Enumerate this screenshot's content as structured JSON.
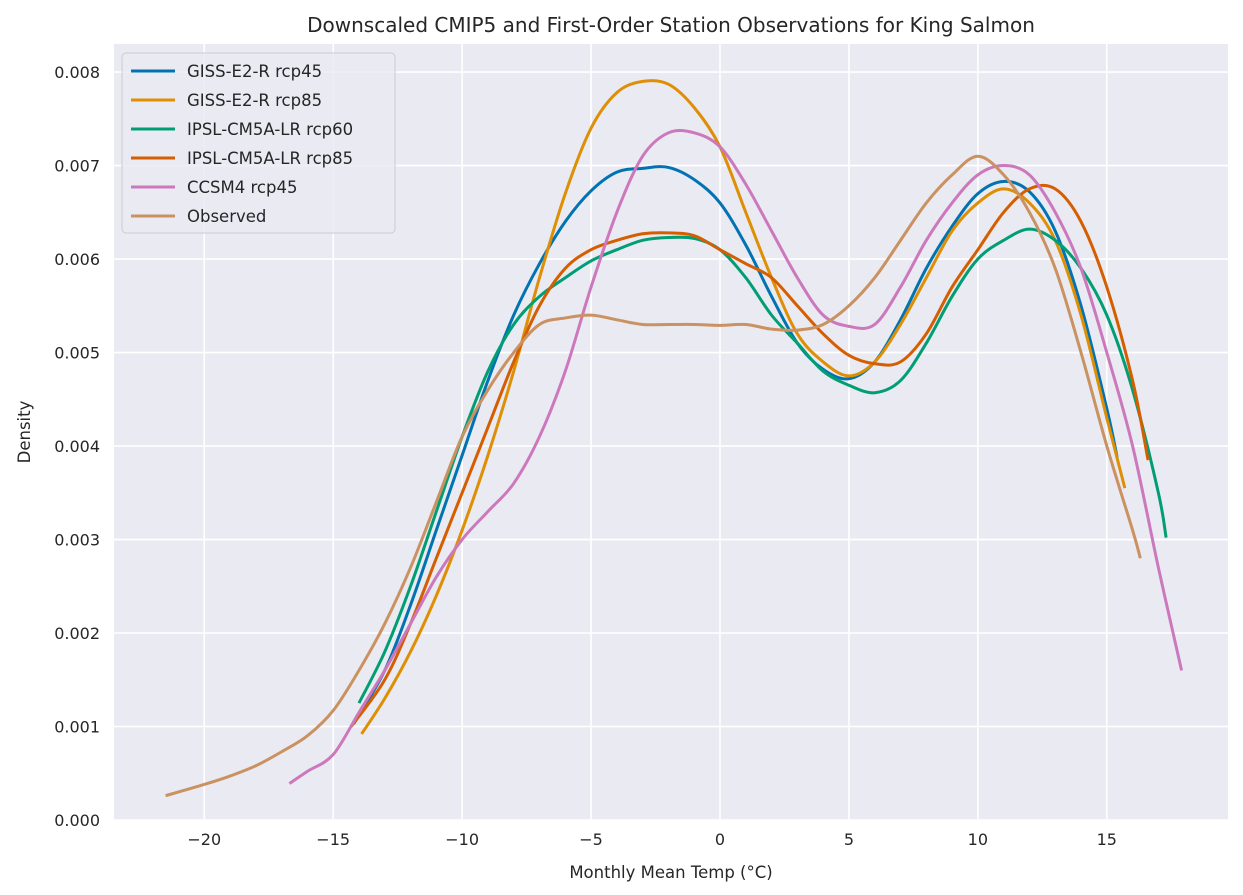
{
  "chart_data": {
    "type": "line",
    "title": "Downscaled CMIP5 and First-Order Station Observations for King Salmon",
    "xlabel": "Monthly Mean Temp (°C)",
    "ylabel": "Density",
    "xlim": [
      -23.5,
      19.7
    ],
    "ylim": [
      0,
      0.0083
    ],
    "xticks": [
      -20,
      -15,
      -10,
      -5,
      0,
      5,
      10,
      15
    ],
    "xtick_labels": [
      "−20",
      "−15",
      "−10",
      "−5",
      "0",
      "5",
      "10",
      "15"
    ],
    "yticks": [
      0,
      0.001,
      0.002,
      0.003,
      0.004,
      0.005,
      0.006,
      0.007,
      0.008
    ],
    "ytick_labels": [
      "0.000",
      "0.001",
      "0.002",
      "0.003",
      "0.004",
      "0.005",
      "0.006",
      "0.007",
      "0.008"
    ],
    "grid": true,
    "legend_position": "top-left",
    "background": "#eaeaf2",
    "series": [
      {
        "name": "GISS-E2-R rcp45",
        "color": "#0173b2",
        "points": [
          [
            -14.2,
            0.00103
          ],
          [
            -13,
            0.0016
          ],
          [
            -12,
            0.0023
          ],
          [
            -11,
            0.0031
          ],
          [
            -10,
            0.0039
          ],
          [
            -9,
            0.0047
          ],
          [
            -8,
            0.0054
          ],
          [
            -7,
            0.00595
          ],
          [
            -6,
            0.0064
          ],
          [
            -5,
            0.00673
          ],
          [
            -4,
            0.00693
          ],
          [
            -3,
            0.00697
          ],
          [
            -2,
            0.00698
          ],
          [
            -1,
            0.00685
          ],
          [
            0,
            0.0066
          ],
          [
            1,
            0.00615
          ],
          [
            2,
            0.0056
          ],
          [
            3,
            0.0051
          ],
          [
            4,
            0.00482
          ],
          [
            5,
            0.00472
          ],
          [
            6,
            0.0049
          ],
          [
            7,
            0.00535
          ],
          [
            8,
            0.0059
          ],
          [
            9,
            0.00635
          ],
          [
            10,
            0.0067
          ],
          [
            11,
            0.00683
          ],
          [
            12,
            0.00672
          ],
          [
            13,
            0.0063
          ],
          [
            14,
            0.0055
          ],
          [
            15,
            0.0044
          ],
          [
            15.4,
            0.00388
          ]
        ]
      },
      {
        "name": "GISS-E2-R rcp85",
        "color": "#de8f05",
        "points": [
          [
            -13.9,
            0.00092
          ],
          [
            -13,
            0.0013
          ],
          [
            -12,
            0.0018
          ],
          [
            -11,
            0.0024
          ],
          [
            -10,
            0.0031
          ],
          [
            -9,
            0.0039
          ],
          [
            -8,
            0.0048
          ],
          [
            -7,
            0.0058
          ],
          [
            -6,
            0.0067
          ],
          [
            -5,
            0.0074
          ],
          [
            -4,
            0.00778
          ],
          [
            -3,
            0.0079
          ],
          [
            -2,
            0.00787
          ],
          [
            -1,
            0.00762
          ],
          [
            0,
            0.0072
          ],
          [
            1,
            0.0065
          ],
          [
            2,
            0.0058
          ],
          [
            3,
            0.0052
          ],
          [
            4,
            0.0049
          ],
          [
            5,
            0.00475
          ],
          [
            6,
            0.0049
          ],
          [
            7,
            0.0053
          ],
          [
            8,
            0.0058
          ],
          [
            9,
            0.0063
          ],
          [
            10,
            0.0066
          ],
          [
            11,
            0.00675
          ],
          [
            12,
            0.0066
          ],
          [
            13,
            0.0062
          ],
          [
            14,
            0.0054
          ],
          [
            15,
            0.0043
          ],
          [
            15.7,
            0.00355
          ]
        ]
      },
      {
        "name": "IPSL-CM5A-LR rcp60",
        "color": "#029e73",
        "points": [
          [
            -14,
            0.00125
          ],
          [
            -13,
            0.0018
          ],
          [
            -12,
            0.0025
          ],
          [
            -11,
            0.0033
          ],
          [
            -10,
            0.0041
          ],
          [
            -9,
            0.0048
          ],
          [
            -8,
            0.0053
          ],
          [
            -7,
            0.0056
          ],
          [
            -6,
            0.0058
          ],
          [
            -5,
            0.00598
          ],
          [
            -4,
            0.0061
          ],
          [
            -3,
            0.0062
          ],
          [
            -2,
            0.00623
          ],
          [
            -1,
            0.00622
          ],
          [
            0,
            0.0061
          ],
          [
            1,
            0.0058
          ],
          [
            2,
            0.0054
          ],
          [
            3,
            0.0051
          ],
          [
            4,
            0.0048
          ],
          [
            5,
            0.00465
          ],
          [
            6,
            0.00457
          ],
          [
            7,
            0.0047
          ],
          [
            8,
            0.0051
          ],
          [
            9,
            0.0056
          ],
          [
            10,
            0.006
          ],
          [
            11,
            0.0062
          ],
          [
            12,
            0.00632
          ],
          [
            13,
            0.0062
          ],
          [
            14,
            0.0059
          ],
          [
            15,
            0.0054
          ],
          [
            16,
            0.0046
          ],
          [
            17,
            0.0035
          ],
          [
            17.3,
            0.00302
          ]
        ]
      },
      {
        "name": "IPSL-CM5A-LR rcp85",
        "color": "#d55e00",
        "points": [
          [
            -14.3,
            0.001
          ],
          [
            -13,
            0.0015
          ],
          [
            -12,
            0.0021
          ],
          [
            -11,
            0.0028
          ],
          [
            -10,
            0.0035
          ],
          [
            -9,
            0.0042
          ],
          [
            -8,
            0.0049
          ],
          [
            -7,
            0.0055
          ],
          [
            -6,
            0.0059
          ],
          [
            -5,
            0.0061
          ],
          [
            -4,
            0.0062
          ],
          [
            -3,
            0.00627
          ],
          [
            -2,
            0.00628
          ],
          [
            -1,
            0.00625
          ],
          [
            0,
            0.0061
          ],
          [
            1,
            0.00595
          ],
          [
            2,
            0.0058
          ],
          [
            3,
            0.0055
          ],
          [
            4,
            0.0052
          ],
          [
            5,
            0.00497
          ],
          [
            6,
            0.00488
          ],
          [
            7,
            0.0049
          ],
          [
            8,
            0.0052
          ],
          [
            9,
            0.0057
          ],
          [
            10,
            0.0061
          ],
          [
            11,
            0.0065
          ],
          [
            12,
            0.00675
          ],
          [
            13,
            0.00675
          ],
          [
            14,
            0.0064
          ],
          [
            15,
            0.0057
          ],
          [
            16,
            0.0047
          ],
          [
            16.6,
            0.00385
          ]
        ]
      },
      {
        "name": "CCSM4 rcp45",
        "color": "#cc78bc",
        "points": [
          [
            -16.7,
            0.00039
          ],
          [
            -16,
            0.00052
          ],
          [
            -15,
            0.0007
          ],
          [
            -14,
            0.00115
          ],
          [
            -13,
            0.0016
          ],
          [
            -12,
            0.0021
          ],
          [
            -11,
            0.0026
          ],
          [
            -10,
            0.003
          ],
          [
            -9,
            0.0033
          ],
          [
            -8,
            0.0036
          ],
          [
            -7,
            0.0041
          ],
          [
            -6,
            0.0048
          ],
          [
            -5,
            0.0057
          ],
          [
            -4,
            0.0065
          ],
          [
            -3,
            0.0071
          ],
          [
            -2,
            0.00735
          ],
          [
            -1,
            0.00735
          ],
          [
            0,
            0.0072
          ],
          [
            1,
            0.0068
          ],
          [
            2,
            0.0063
          ],
          [
            3,
            0.0058
          ],
          [
            4,
            0.0054
          ],
          [
            5,
            0.00528
          ],
          [
            6,
            0.0053
          ],
          [
            7,
            0.0057
          ],
          [
            8,
            0.0062
          ],
          [
            9,
            0.0066
          ],
          [
            10,
            0.0069
          ],
          [
            11,
            0.007
          ],
          [
            12,
            0.0069
          ],
          [
            13,
            0.0065
          ],
          [
            14,
            0.0059
          ],
          [
            15,
            0.005
          ],
          [
            16,
            0.004
          ],
          [
            17,
            0.0027
          ],
          [
            17.9,
            0.0016
          ]
        ]
      },
      {
        "name": "Observed",
        "color": "#ca9161",
        "points": [
          [
            -21.5,
            0.00026
          ],
          [
            -20,
            0.00038
          ],
          [
            -19,
            0.00047
          ],
          [
            -18,
            0.00058
          ],
          [
            -17,
            0.00073
          ],
          [
            -16,
            0.0009
          ],
          [
            -15,
            0.00117
          ],
          [
            -14,
            0.0016
          ],
          [
            -13,
            0.0021
          ],
          [
            -12,
            0.0027
          ],
          [
            -11,
            0.0034
          ],
          [
            -10,
            0.0041
          ],
          [
            -9,
            0.0046
          ],
          [
            -8,
            0.005
          ],
          [
            -7,
            0.0053
          ],
          [
            -6,
            0.00537
          ],
          [
            -5,
            0.0054
          ],
          [
            -4,
            0.00535
          ],
          [
            -3,
            0.0053
          ],
          [
            -2,
            0.0053
          ],
          [
            -1,
            0.0053
          ],
          [
            0,
            0.00529
          ],
          [
            1,
            0.0053
          ],
          [
            2,
            0.00525
          ],
          [
            3,
            0.00524
          ],
          [
            4,
            0.0053
          ],
          [
            5,
            0.0055
          ],
          [
            6,
            0.0058
          ],
          [
            7,
            0.0062
          ],
          [
            8,
            0.0066
          ],
          [
            9,
            0.0069
          ],
          [
            10,
            0.0071
          ],
          [
            11,
            0.0069
          ],
          [
            12,
            0.0065
          ],
          [
            13,
            0.0059
          ],
          [
            14,
            0.005
          ],
          [
            15,
            0.004
          ],
          [
            16,
            0.0031
          ],
          [
            16.3,
            0.0028
          ]
        ]
      }
    ]
  }
}
